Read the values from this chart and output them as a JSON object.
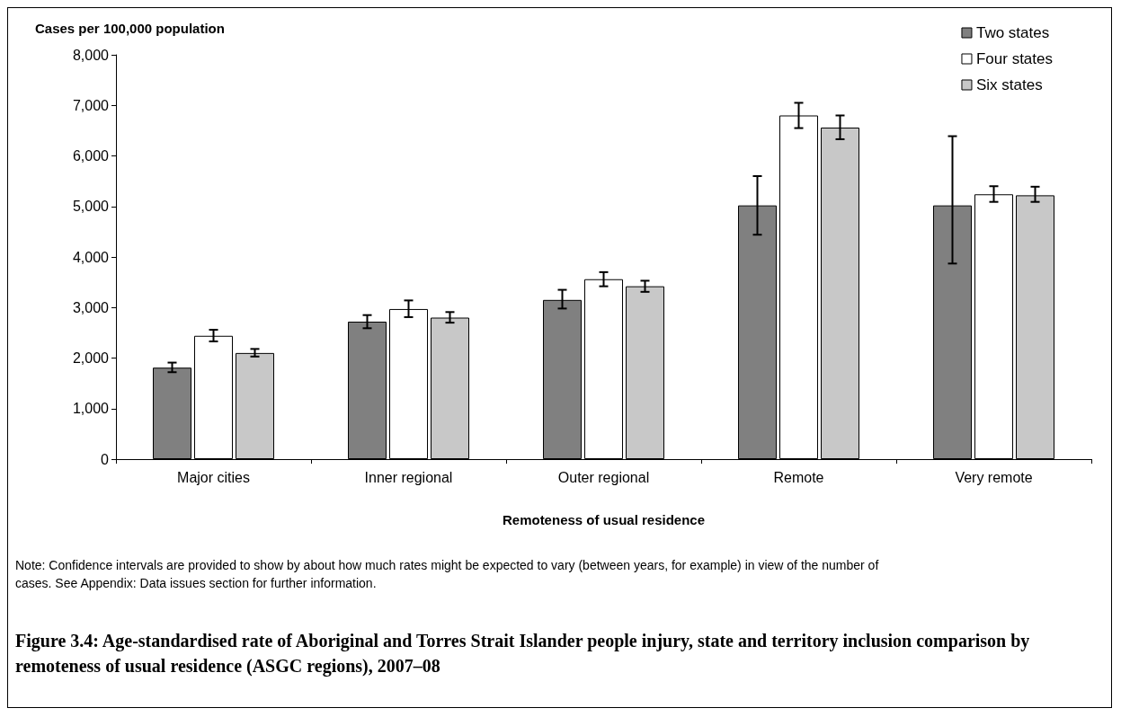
{
  "chart_data": {
    "type": "bar",
    "title": "Figure 3.4: Age-standardised rate of Aboriginal and Torres Strait Islander people injury, state and territory inclusion comparison by remoteness of usual residence (ASGC regions), 2007–08",
    "xlabel": "Remoteness of usual residence",
    "ylabel": "Cases per 100,000 population",
    "annotations": [
      "Note: Confidence intervals are provided to show by about how much rates might be expected to vary (between years, for example) in view of the number of cases. See Appendix: Data issues section for further information."
    ],
    "categories": [
      "Major cities",
      "Inner regional",
      "Outer regional",
      "Remote",
      "Very remote"
    ],
    "series": [
      {
        "name": "Two states",
        "color": "#808080",
        "values": [
          1810,
          2720,
          3150,
          5020,
          5020
        ],
        "errors": [
          [
            1720,
            1910
          ],
          [
            2590,
            2850
          ],
          [
            2980,
            3350
          ],
          [
            4440,
            5600
          ],
          [
            3870,
            6390
          ]
        ]
      },
      {
        "name": "Four states",
        "color": "#ffffff",
        "values": [
          2440,
          2970,
          3560,
          6800,
          5240
        ],
        "errors": [
          [
            2330,
            2560
          ],
          [
            2810,
            3140
          ],
          [
            3420,
            3700
          ],
          [
            6550,
            7050
          ],
          [
            5090,
            5400
          ]
        ]
      },
      {
        "name": "Six states",
        "color": "#c8c8c8",
        "values": [
          2100,
          2800,
          3420,
          6560,
          5220
        ],
        "errors": [
          [
            2030,
            2180
          ],
          [
            2700,
            2910
          ],
          [
            3310,
            3530
          ],
          [
            6330,
            6800
          ],
          [
            5090,
            5390
          ]
        ]
      }
    ],
    "ylim": [
      0,
      8000
    ],
    "yticks": [
      0,
      {
        "value": 1000,
        "label": "1,000"
      },
      {
        "value": 2000,
        "label": "2,000"
      },
      {
        "value": 3000,
        "label": "3,000"
      },
      {
        "value": 4000,
        "label": "4,000"
      },
      {
        "value": 5000,
        "label": "5,000"
      },
      {
        "value": 6000,
        "label": "6,000"
      },
      {
        "value": 7000,
        "label": "7,000"
      },
      {
        "value": 8000,
        "label": "8,000"
      }
    ],
    "grid": false,
    "legend": "top right"
  }
}
